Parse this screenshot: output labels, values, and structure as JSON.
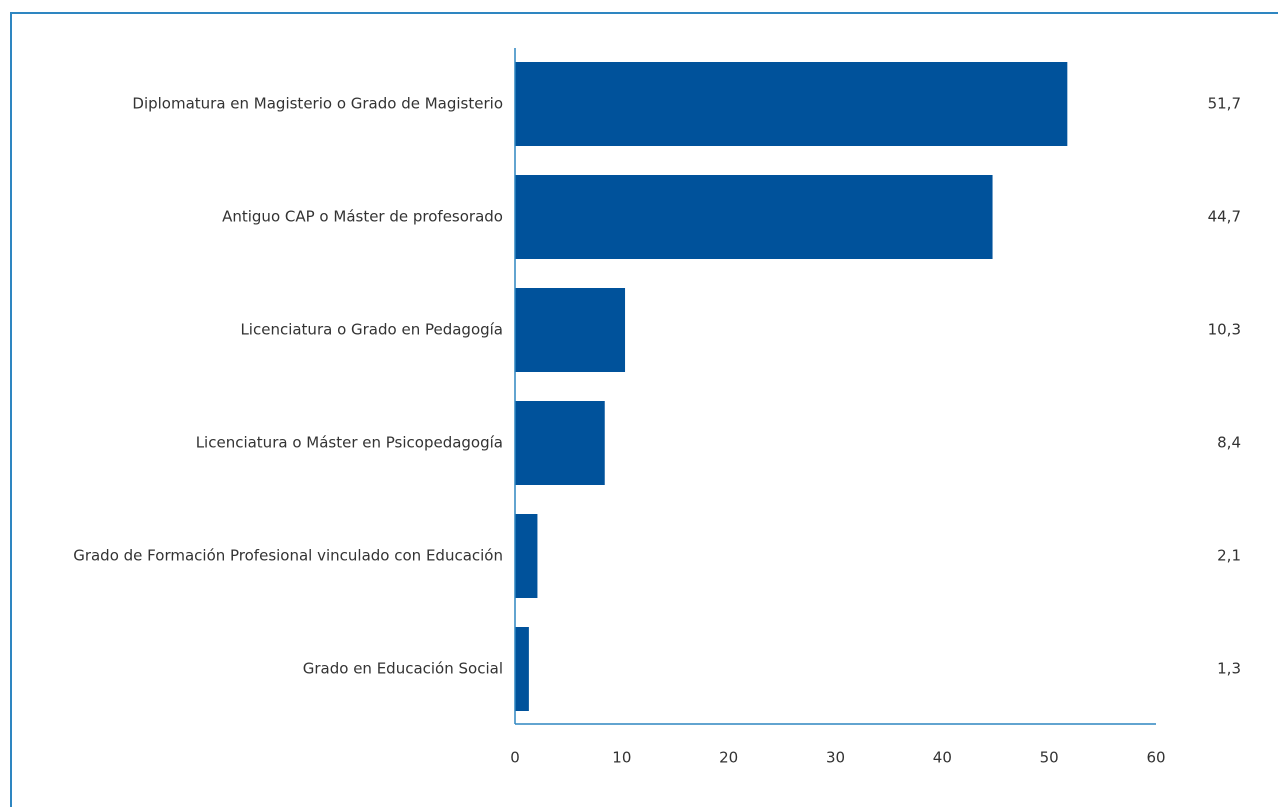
{
  "chart_data": {
    "type": "bar",
    "orientation": "horizontal",
    "categories": [
      "Diplomatura en Magisterio o Grado de Magisterio",
      "Antiguo CAP o Máster de profesorado",
      "Licenciatura o Grado en Pedagogía",
      "Licenciatura o Máster en Psicopedagogía",
      "Grado de Formación Profesional vinculado con Educación",
      "Grado en Educación Social"
    ],
    "values": [
      51.7,
      44.7,
      10.3,
      8.4,
      2.1,
      1.3
    ],
    "value_labels": [
      "51,7",
      "44,7",
      "10,3",
      "8,4",
      "2,1",
      "1,3"
    ],
    "xlim": [
      0,
      60
    ],
    "x_ticks": [
      0,
      10,
      20,
      30,
      40,
      50,
      60
    ],
    "x_tick_labels": [
      "0",
      "10",
      "20",
      "30",
      "40",
      "50",
      "60"
    ],
    "grid": false,
    "bar_color": "#00529b",
    "frame_color": "#2e86c1"
  }
}
